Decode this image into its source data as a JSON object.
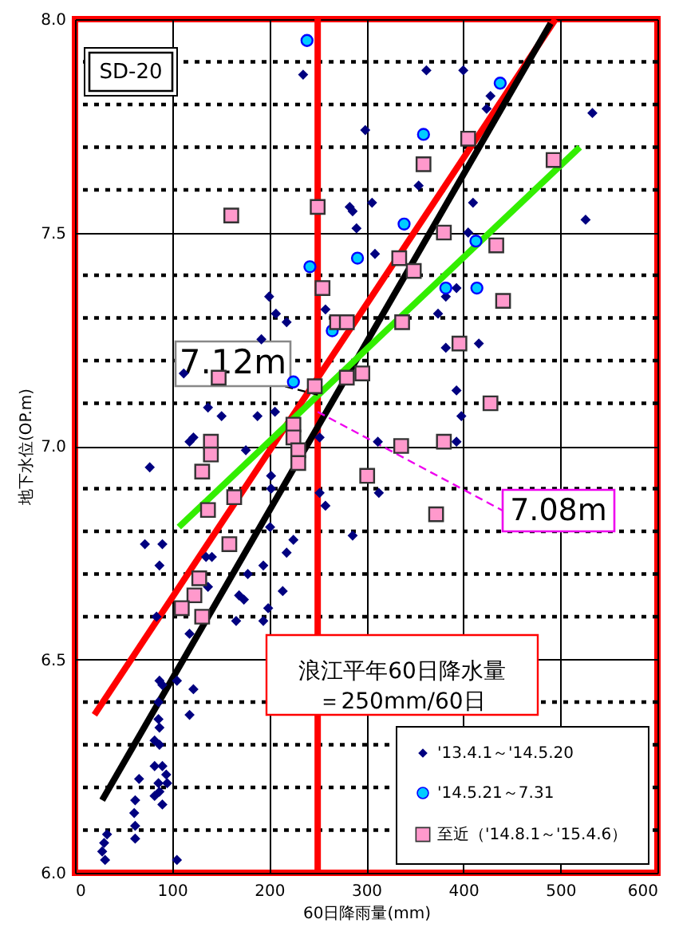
{
  "chart_data": {
    "type": "scatter",
    "xlabel": "60日降雨量(mm)",
    "ylabel": "地下水位(OP.m)",
    "xlim": [
      0,
      600
    ],
    "xticks": [
      0,
      100,
      200,
      300,
      400,
      500,
      600
    ],
    "ylim": [
      6,
      8
    ],
    "yticks": [
      {
        "value": 6,
        "label": "6.0"
      },
      {
        "value": 6.1,
        "label": null
      },
      {
        "value": 6.2,
        "label": null
      },
      {
        "value": 6.3,
        "label": null
      },
      {
        "value": 6.4,
        "label": null
      },
      {
        "value": 6.5,
        "label": "6.5"
      },
      {
        "value": 6.6,
        "label": null
      },
      {
        "value": 6.7,
        "label": null
      },
      {
        "value": 6.8,
        "label": null
      },
      {
        "value": 6.9,
        "label": null
      },
      {
        "value": 7,
        "label": "7.0"
      },
      {
        "value": 7.1,
        "label": null
      },
      {
        "value": 7.2,
        "label": null
      },
      {
        "value": 7.3,
        "label": null
      },
      {
        "value": 7.4,
        "label": null
      },
      {
        "value": 7.5,
        "label": "7.5"
      },
      {
        "value": 7.6,
        "label": null
      },
      {
        "value": 7.7,
        "label": null
      },
      {
        "value": 7.8,
        "label": null
      },
      {
        "value": 7.9,
        "label": null
      },
      {
        "value": 8,
        "label": "8.0"
      }
    ],
    "grid": true,
    "legend": "bottom right",
    "series": [
      {
        "name": "'13.4.1～'14.5.20",
        "type": "scatter",
        "marker": "diamond",
        "color": "#000080",
        "x": [
          235,
          299,
          283,
          286,
          306,
          290,
          309,
          200,
          207,
          218,
          258,
          192,
          112,
          137,
          151,
          188,
          206,
          118,
          252,
          362,
          400,
          428,
          424,
          533,
          354,
          410,
          526,
          405,
          393,
          382,
          374,
          382,
          416,
          393,
          398,
          393,
          312,
          176,
          77,
          202,
          202,
          252,
          258,
          72,
          90,
          87,
          135,
          141,
          201,
          225,
          218,
          286,
          194,
          178,
          137,
          169,
          174,
          214,
          199,
          84,
          166,
          194,
          118,
          87,
          90,
          105,
          122,
          118,
          86,
          86,
          87,
          82,
          87,
          82,
          90,
          94,
          86,
          95,
          82,
          87,
          90,
          66,
          62,
          61,
          62,
          62,
          33,
          30,
          28,
          31,
          105,
          122,
          313
        ],
        "values": [
          7.87,
          7.74,
          7.56,
          7.55,
          7.57,
          7.51,
          7.45,
          7.35,
          7.31,
          7.29,
          7.32,
          7.25,
          7.17,
          7.09,
          7.07,
          7.07,
          7.08,
          7.01,
          7.02,
          7.88,
          7.88,
          7.82,
          7.79,
          7.78,
          7.61,
          7.57,
          7.53,
          7.5,
          7.37,
          7.35,
          7.31,
          7.23,
          7.24,
          7.13,
          7.07,
          7.01,
          7.01,
          6.99,
          6.95,
          6.93,
          6.9,
          6.89,
          6.86,
          6.77,
          6.77,
          6.72,
          6.74,
          6.74,
          6.81,
          6.78,
          6.75,
          6.79,
          6.72,
          6.7,
          6.67,
          6.65,
          6.64,
          6.66,
          6.62,
          6.6,
          6.59,
          6.59,
          6.56,
          6.45,
          6.44,
          6.45,
          6.43,
          6.37,
          6.4,
          6.36,
          6.34,
          6.31,
          6.3,
          6.25,
          6.25,
          6.23,
          6.21,
          6.21,
          6.18,
          6.19,
          6.16,
          6.22,
          6.17,
          6.14,
          6.11,
          6.08,
          6.09,
          6.07,
          6.05,
          6.03,
          6.03,
          7.02,
          6.89
        ]
      },
      {
        "name": "'14.5.21～7.31",
        "type": "scatter",
        "marker": "circle",
        "color": "#00ccff",
        "x": [
          239,
          242,
          291,
          265,
          225,
          438,
          359,
          339,
          413,
          382,
          414
        ],
        "values": [
          7.95,
          7.42,
          7.44,
          7.27,
          7.15,
          7.85,
          7.73,
          7.52,
          7.48,
          7.37,
          7.37
        ]
      },
      {
        "name": "至近（'14.8.1～'15.4.6）",
        "type": "scatter",
        "marker": "square",
        "color": "#ff99cc",
        "x": [
          161,
          250,
          255,
          270,
          280,
          148,
          296,
          280,
          247,
          140,
          225,
          405,
          359,
          493,
          380,
          334,
          349,
          434,
          441,
          337,
          396,
          428,
          380,
          336,
          372,
          301,
          140,
          131,
          164,
          137,
          159,
          128,
          123,
          110,
          131,
          225,
          230,
          230
        ],
        "values": [
          7.54,
          7.56,
          7.37,
          7.29,
          7.29,
          7.16,
          7.17,
          7.16,
          7.14,
          7.01,
          7.05,
          7.72,
          7.66,
          7.67,
          7.5,
          7.44,
          7.41,
          7.47,
          7.34,
          7.29,
          7.24,
          7.1,
          7.01,
          7,
          6.84,
          6.93,
          6.98,
          6.94,
          6.88,
          6.85,
          6.77,
          6.69,
          6.65,
          6.62,
          6.6,
          7.02,
          6.99,
          6.96
        ]
      },
      {
        "type": "line",
        "color": "#ff0000",
        "x": [
          20,
          495
        ],
        "values": [
          6.37,
          8.0
        ]
      },
      {
        "type": "line",
        "color": "#000000",
        "x": [
          28,
          490
        ],
        "values": [
          6.17,
          7.99
        ]
      },
      {
        "type": "line",
        "color": "#33ee00",
        "x": [
          107,
          520
        ],
        "values": [
          6.81,
          7.7
        ]
      }
    ],
    "ref_lines": [
      {
        "axis": "x",
        "value": 250,
        "label": "浪江平年60日降水量＝250mm/60日",
        "color": "#ff0000"
      }
    ],
    "annotations": [
      "SD-20",
      {
        "text": "7.12m",
        "x": 250,
        "y": 7.12
      },
      {
        "text": "7.08m",
        "x": 250,
        "y": 7.08
      }
    ]
  }
}
